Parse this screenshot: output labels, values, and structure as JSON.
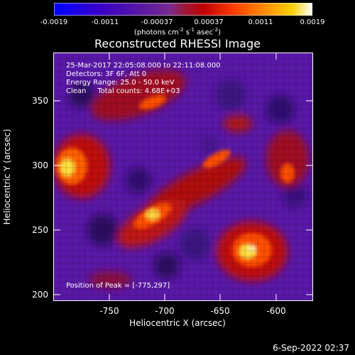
{
  "colorbar": {
    "ticks": [
      "-0.0019",
      "-0.0011",
      "-0.00037",
      "0.00037",
      "0.0011",
      "0.0019"
    ],
    "units_prefix": "(photons cm",
    "units_exp1": "-2",
    "units_mid1": " s",
    "units_exp2": "-1",
    "units_mid2": " asec",
    "units_exp3": "-2",
    "units_suffix": ")",
    "colors": [
      "#0000ff",
      "#3a00c8",
      "#5a1aa0",
      "#7a2a90",
      "#9a1a40",
      "#c00000",
      "#ff4000",
      "#ff9000",
      "#ffd000",
      "#ffffff"
    ]
  },
  "title": "Reconstructed RHESSI Image",
  "info": {
    "line1": "25-Mar-2017 22:05:08.000 to 22:11:08.000",
    "line2": "Detectors: 3F 6F, Att 0",
    "line3": "Energy Range: 25.0 - 50.0 keV",
    "line4": "Clean     Total counts: 4.68E+03",
    "peak": "Position of Peak = [-775,297]"
  },
  "axes": {
    "xlabel": "Heliocentric X (arcsec)",
    "ylabel": "Heliocentric Y (arcsec)",
    "xticks": [
      "-750",
      "-700",
      "-650",
      "-600"
    ],
    "yticks": [
      "350",
      "300",
      "250",
      "200"
    ]
  },
  "footer": {
    "date": "6-Sep-2022 02:37"
  }
}
